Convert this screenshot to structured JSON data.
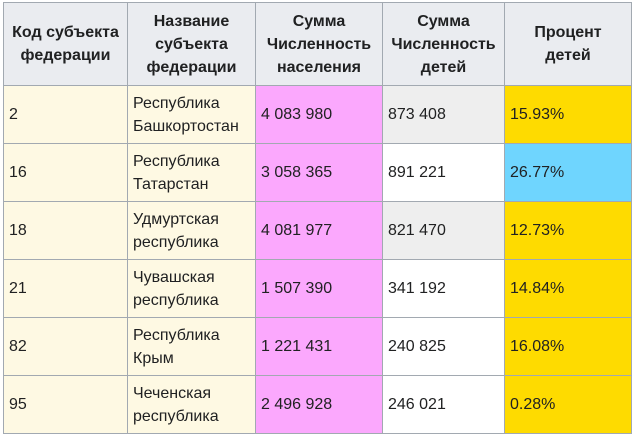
{
  "table": {
    "headers": [
      "Код субъекта федерации",
      "Название субъекта федерации",
      "Сумма Численность населения",
      "Сумма Численность детей",
      "Процент детей"
    ],
    "rows": [
      {
        "code": "2",
        "name": "Республика Башкортостан",
        "population": "4 083 980",
        "children": "873 408",
        "percent": "15.93%"
      },
      {
        "code": "16",
        "name": "Республика Татарстан",
        "population": "3 058 365",
        "children": "891 221",
        "percent": "26.77%"
      },
      {
        "code": "18",
        "name": "Удмуртская республика",
        "population": "4 081 977",
        "children": "821 470",
        "percent": "12.73%"
      },
      {
        "code": "21",
        "name": "Чувашская республика",
        "population": "1 507 390",
        "children": "341 192",
        "percent": "14.84%"
      },
      {
        "code": "82",
        "name": "Республика Крым",
        "population": "1 221 431",
        "children": "240 825",
        "percent": "16.08%"
      },
      {
        "code": "95",
        "name": "Чеченская республика",
        "population": "2 496 928",
        "children": "246 021",
        "percent": "0.28%"
      }
    ]
  },
  "colors": {
    "header_bg": "#eaecf0",
    "code_name_bg": "#fef9e3",
    "population_bg": "#fba8fd",
    "children_grey_bg": "#eeeeee",
    "children_white_bg": "#ffffff",
    "percent_yellow_bg": "#fedb00",
    "percent_blue_bg": "#6fd5fe",
    "border": "#a2a9b1"
  }
}
